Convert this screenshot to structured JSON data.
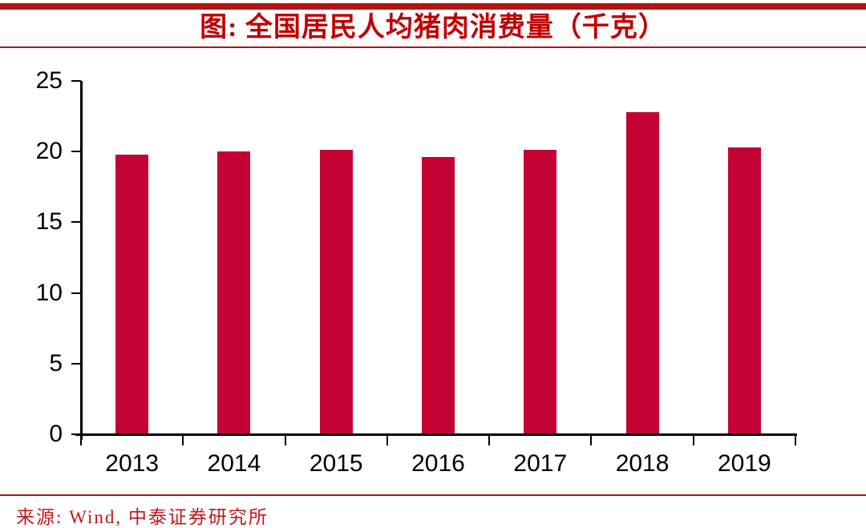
{
  "header": {
    "title": "图: 全国居民人均猪肉消费量（千克）"
  },
  "footer": {
    "source": "来源: Wind, 中泰证券研究所"
  },
  "colors": {
    "bar": "#c40233",
    "accent_rule": "#b41414",
    "title_text": "#c00000",
    "source_text": "#c01818",
    "axis": "#000000"
  },
  "chart_data": {
    "type": "bar",
    "title": "图: 全国居民人均猪肉消费量（千克）",
    "categories": [
      "2013",
      "2014",
      "2015",
      "2016",
      "2017",
      "2018",
      "2019"
    ],
    "values": [
      19.8,
      20.0,
      20.1,
      19.6,
      20.1,
      22.8,
      20.3
    ],
    "xlabel": "",
    "ylabel": "",
    "ylim": [
      0,
      25
    ],
    "yticks": [
      0,
      5,
      10,
      15,
      20,
      25
    ],
    "grid": false,
    "legend": "none",
    "bar_color": "#c40233"
  }
}
